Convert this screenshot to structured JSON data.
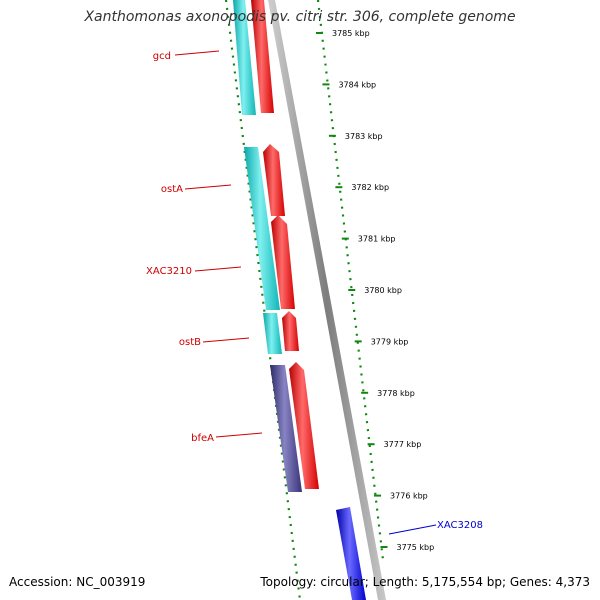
{
  "title": "Xanthomonas axonopodis pv. citri str. 306, complete genome",
  "footer": {
    "accession": "Accession: NC_003919",
    "topology": "Topology: circular; Length: 5,175,554 bp; Genes: 4,373"
  },
  "colors": {
    "cyan_gene": "#2ecfd0",
    "red_gene": "#ee1111",
    "purple_gene": "#4a4488",
    "blue_gene": "#1111ee",
    "backbone": "#999999",
    "dots": "#118811",
    "forward_label": "#cc0000",
    "reverse_label": "#0000cc"
  },
  "scale_labels": [
    "3785 kbp",
    "3784 kbp",
    "3783 kbp",
    "3782 kbp",
    "3781 kbp",
    "3780 kbp",
    "3779 kbp",
    "3778 kbp",
    "3777 kbp",
    "3776 kbp",
    "3775 kbp"
  ],
  "gene_labels": [
    {
      "name": "gcd",
      "strand": "forward"
    },
    {
      "name": "ostA",
      "strand": "forward"
    },
    {
      "name": "XAC3210",
      "strand": "forward"
    },
    {
      "name": "ostB",
      "strand": "forward"
    },
    {
      "name": "bfeA",
      "strand": "forward"
    },
    {
      "name": "XAC3208",
      "strand": "reverse"
    }
  ]
}
